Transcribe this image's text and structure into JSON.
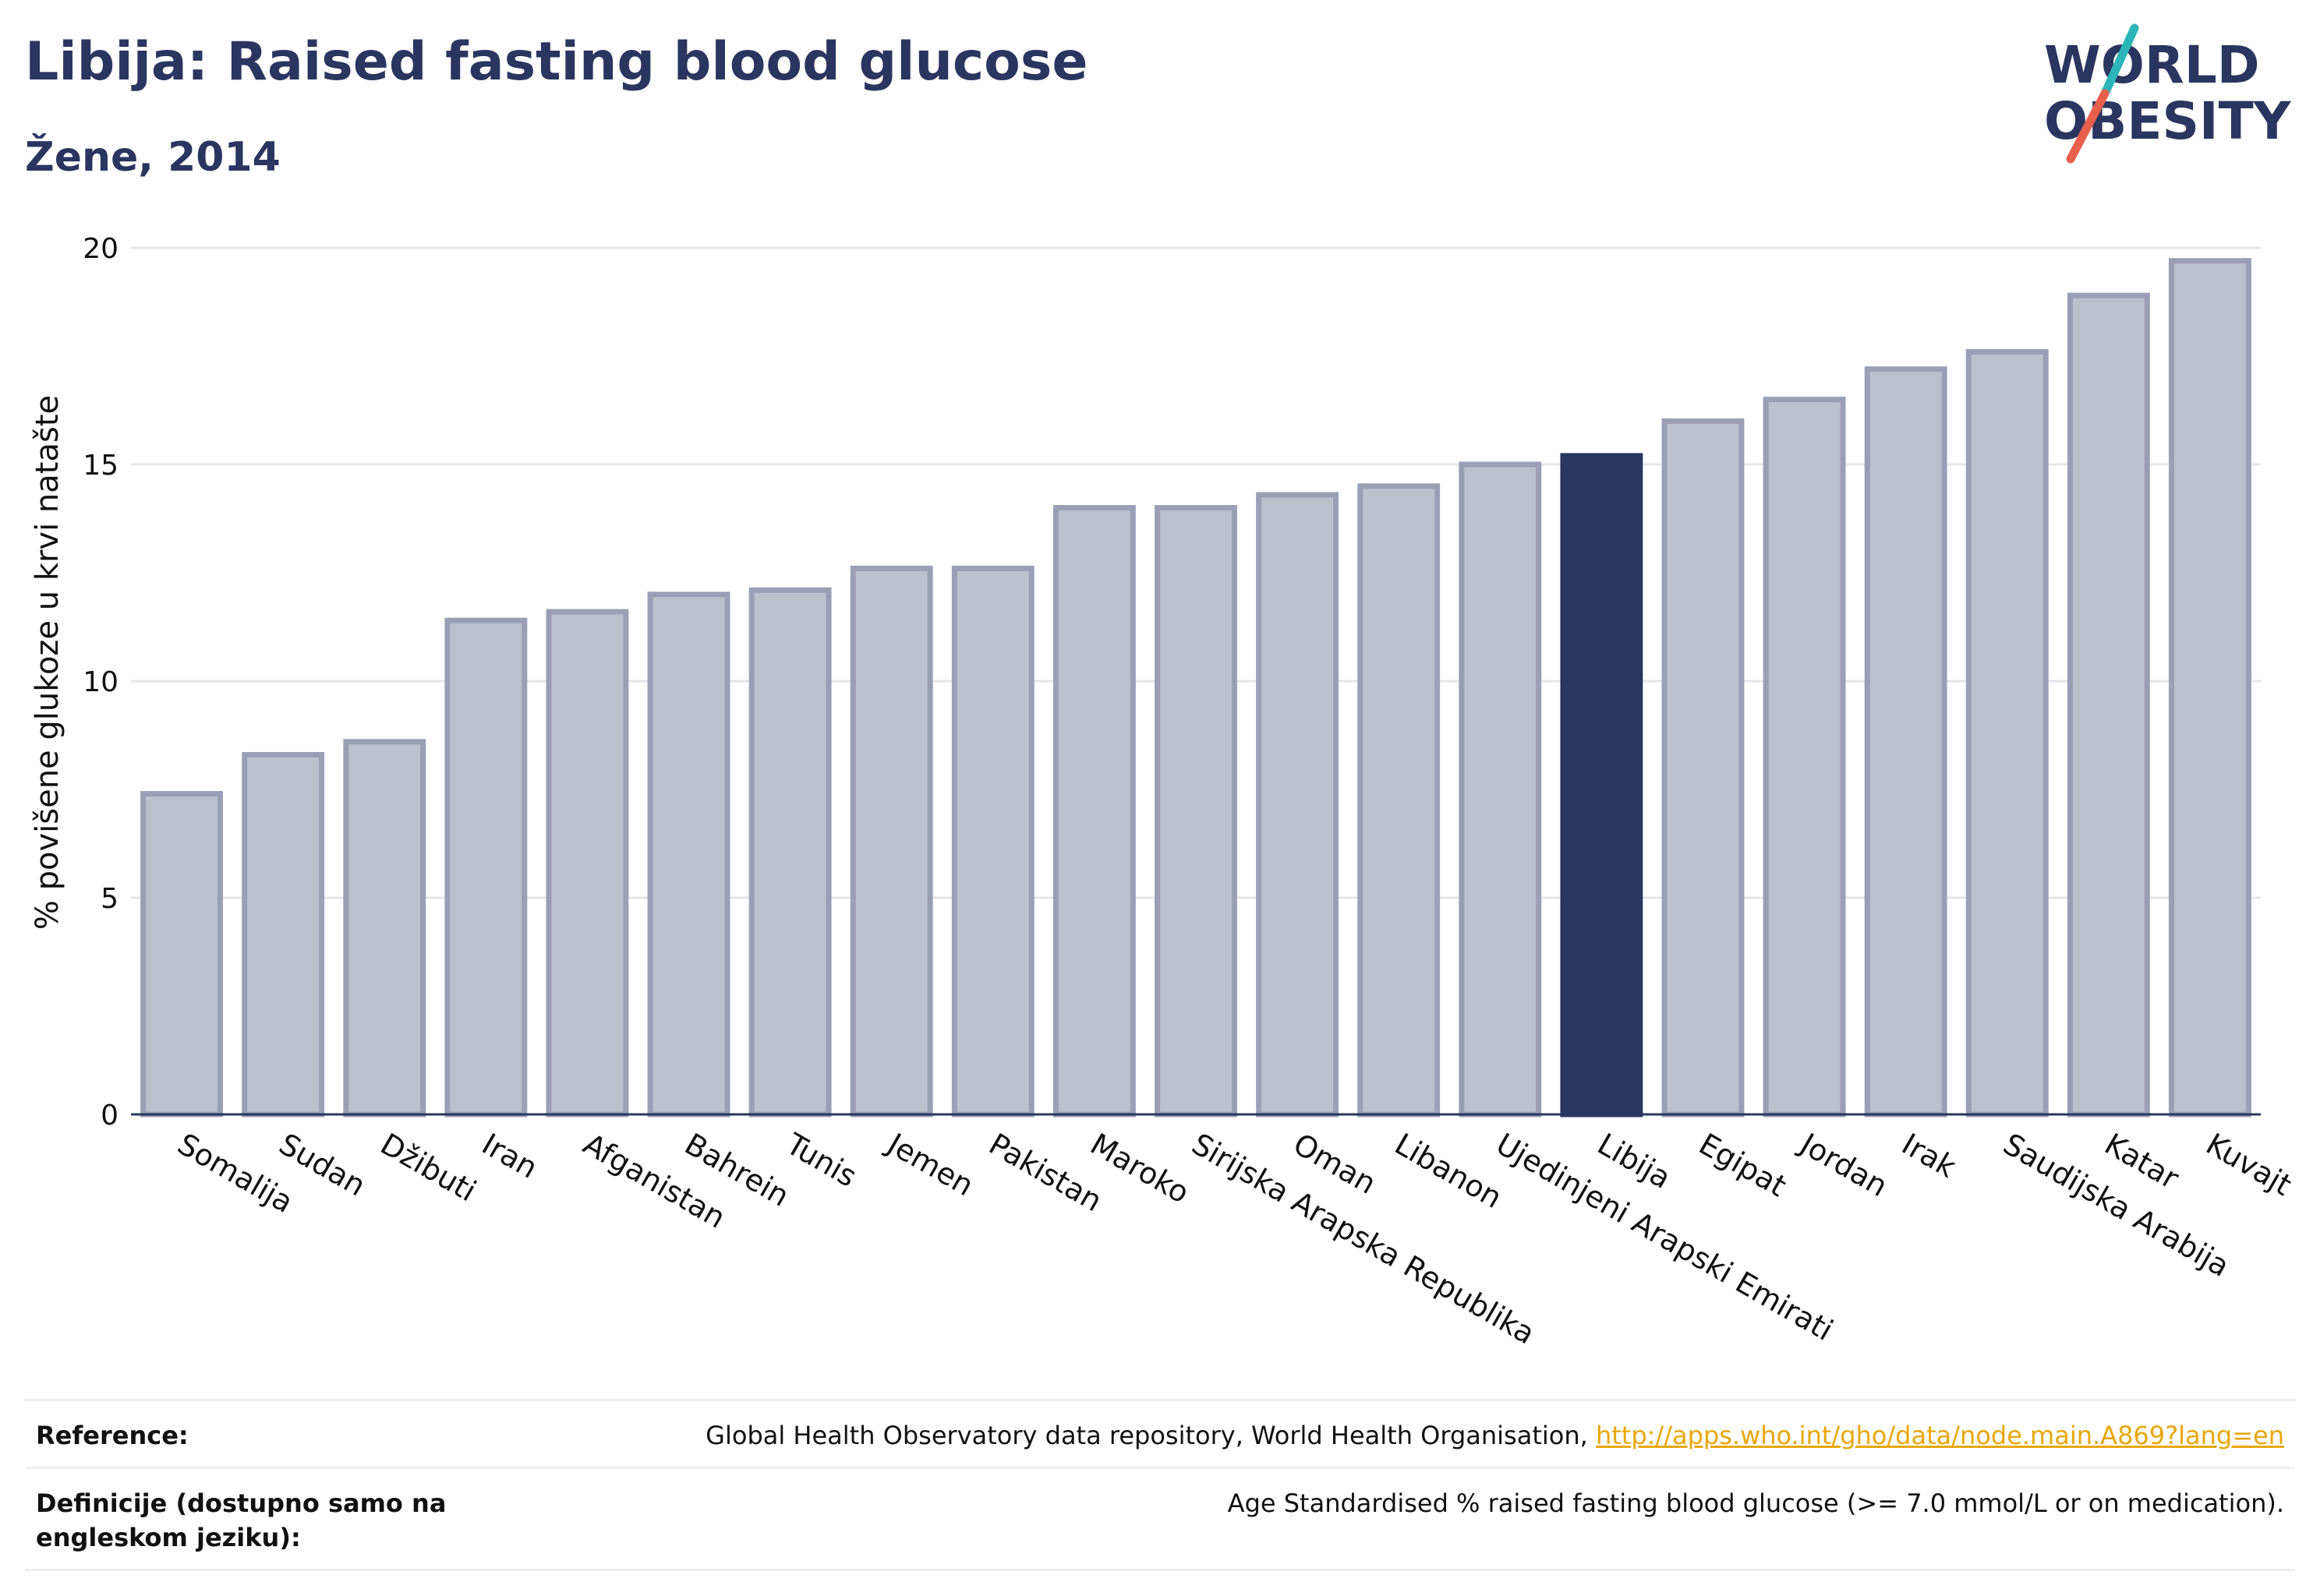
{
  "header": {
    "title": "Libija: Raised fasting blood glucose",
    "subtitle": "Žene, 2014"
  },
  "logo": {
    "line1": "WORLD",
    "line2": "OBESITY",
    "text_color": "#2a3560",
    "slash_top_color": "#2bb5b8",
    "slash_bottom_color": "#e8604c"
  },
  "colors": {
    "bar_default": "#bcc0cd",
    "bar_default_edge": "#9a9fb6",
    "bar_highlight": "#2a3560",
    "axis": "#2a3560",
    "grid": "#e6e6ea",
    "text": "#2a3560",
    "link": "#e8a70a"
  },
  "chart_data": {
    "type": "bar",
    "title": "Libija: Raised fasting blood glucose",
    "subtitle": "Žene, 2014",
    "xlabel": "",
    "ylabel": "% povišene glukoze u krvi natašte",
    "ylim": [
      0,
      20
    ],
    "yticks": [
      0,
      5,
      10,
      15,
      20
    ],
    "grid": true,
    "highlight": "Libija",
    "categories": [
      "Somalija",
      "Sudan",
      "Džibuti",
      "Iran",
      "Afganistan",
      "Bahrein",
      "Tunis",
      "Jemen",
      "Pakistan",
      "Maroko",
      "Sirijska Arapska Republika",
      "Oman",
      "Libanon",
      "Ujedinjeni Arapski Emirati",
      "Libija",
      "Egipat",
      "Jordan",
      "Irak",
      "Saudijska Arabija",
      "Katar",
      "Kuvajt"
    ],
    "values": [
      7.4,
      8.3,
      8.6,
      11.4,
      11.6,
      12.0,
      12.1,
      12.6,
      12.6,
      14.0,
      14.0,
      14.3,
      14.5,
      15.0,
      15.2,
      16.0,
      16.5,
      17.2,
      17.6,
      18.9,
      19.7
    ]
  },
  "footer": {
    "reference_label": "Reference:",
    "reference_text": "Global Health Observatory data repository, World Health Organisation, ",
    "reference_link": "http://apps.who.int/gho/data/node.main.A869?lang=en",
    "definition_label": "Definicije (dostupno samo na engleskom jeziku):",
    "definition_text": "Age Standardised % raised fasting blood glucose (>= 7.0 mmol/L or on medication)."
  }
}
